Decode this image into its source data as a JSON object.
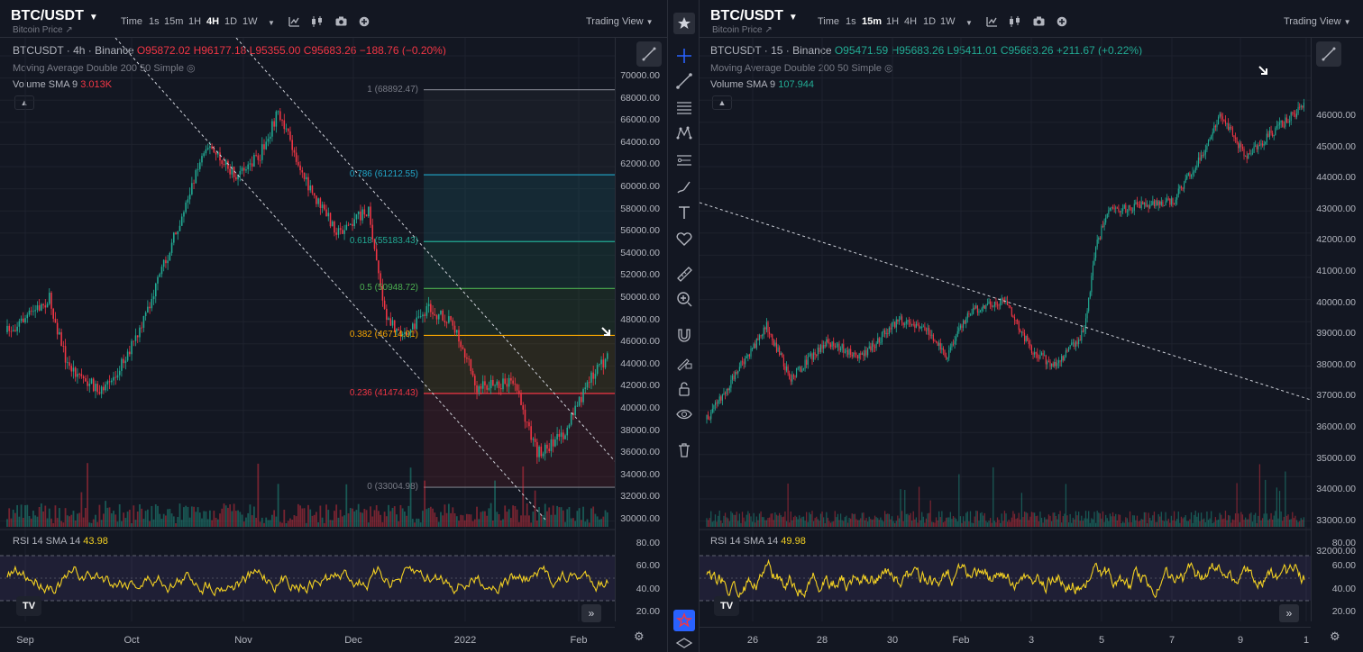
{
  "left": {
    "symbol": "BTC/USDT",
    "subtitle": "Bitcoin Price ↗",
    "timeframes": [
      "Time",
      "1s",
      "15m",
      "1H",
      "4H",
      "1D",
      "1W"
    ],
    "active_tf": "4H",
    "trading_view": "Trading View",
    "legend": {
      "name": "BTCUSDT · 4h · Binance",
      "o": "O95872.02",
      "h": "H96177.18",
      "l": "L95355.00",
      "c": "C95683.26",
      "chg": "−188.76 (−0.20%)"
    },
    "ma": "Moving Average Double 200 50 Simple",
    "vol_label": "Volume SMA 9",
    "vol_value": "3.013K",
    "rsi_label": "RSI 14 SMA 14",
    "rsi_value": "43.98",
    "price_ticks": [
      "70000.00",
      "68000.00",
      "66000.00",
      "64000.00",
      "62000.00",
      "60000.00",
      "58000.00",
      "56000.00",
      "54000.00",
      "52000.00",
      "50000.00",
      "48000.00",
      "46000.00",
      "44000.00",
      "42000.00",
      "40000.00",
      "38000.00",
      "36000.00",
      "34000.00",
      "32000.00",
      "30000.00"
    ],
    "rsi_ticks": [
      "80.00",
      "60.00",
      "40.00",
      "20.00"
    ],
    "x_ticks": [
      "Sep",
      "Oct",
      "Nov",
      "Dec",
      "2022",
      "Feb"
    ],
    "fib": [
      {
        "label": "1 (68892.47)",
        "price": 68892.47,
        "color": "#787b86"
      },
      {
        "label": "0.786 (61212.55)",
        "price": 61212.55,
        "color": "#22a7c9"
      },
      {
        "label": "0.618 (55183.43)",
        "price": 55183.43,
        "color": "#22ab94"
      },
      {
        "label": "0.5 (50948.72)",
        "price": 50948.72,
        "color": "#4caf50"
      },
      {
        "label": "0.382 (46714.01)",
        "price": 46714.01,
        "color": "#f7a600"
      },
      {
        "label": "0.236 (41474.43)",
        "price": 41474.43,
        "color": "#f23645"
      },
      {
        "label": "0 (33004.98)",
        "price": 33004.98,
        "color": "#787b86"
      }
    ]
  },
  "right": {
    "symbol": "BTC/USDT",
    "subtitle": "Bitcoin Price ↗",
    "timeframes": [
      "Time",
      "1s",
      "15m",
      "1H",
      "4H",
      "1D",
      "1W"
    ],
    "active_tf": "15m",
    "trading_view": "Trading View",
    "legend": {
      "name": "BTCUSDT · 15 · Binance",
      "o": "O95471.59",
      "h": "H95683.26",
      "l": "L95411.01",
      "c": "C95683.26",
      "chg": "+211.67 (+0.22%)"
    },
    "ma": "Moving Average Double 200 50 Simple",
    "vol_label": "Volume SMA 9",
    "vol_value": "107.944",
    "rsi_label": "RSI 14 SMA 14",
    "rsi_value": "49.98",
    "price_ticks": [
      "46000.00",
      "45000.00",
      "44000.00",
      "43000.00",
      "42000.00",
      "41000.00",
      "40000.00",
      "39000.00",
      "38000.00",
      "37000.00",
      "36000.00",
      "35000.00",
      "34000.00",
      "33000.00",
      "32000.00"
    ],
    "rsi_ticks": [
      "80.00",
      "60.00",
      "40.00",
      "20.00"
    ],
    "x_ticks": [
      "26",
      "28",
      "30",
      "Feb",
      "3",
      "5",
      "7",
      "9",
      "1"
    ]
  },
  "tools": [
    "crosshair-icon",
    "trend-line-icon",
    "fib-icon",
    "pattern-icon",
    "prediction-icon",
    "brush-icon",
    "text-icon",
    "heart-icon",
    "ruler-icon",
    "zoom-in-icon",
    "magnet-icon",
    "lock-draw-icon",
    "lock-icon",
    "eye-icon",
    "trash-icon",
    "star-icon",
    "layers-icon"
  ],
  "colors": {
    "up": "#22ab94",
    "down": "#f23645",
    "rsi": "#f2d023",
    "bg": "#131722"
  },
  "logo_text": "TV",
  "right_fib_hidden": true
}
